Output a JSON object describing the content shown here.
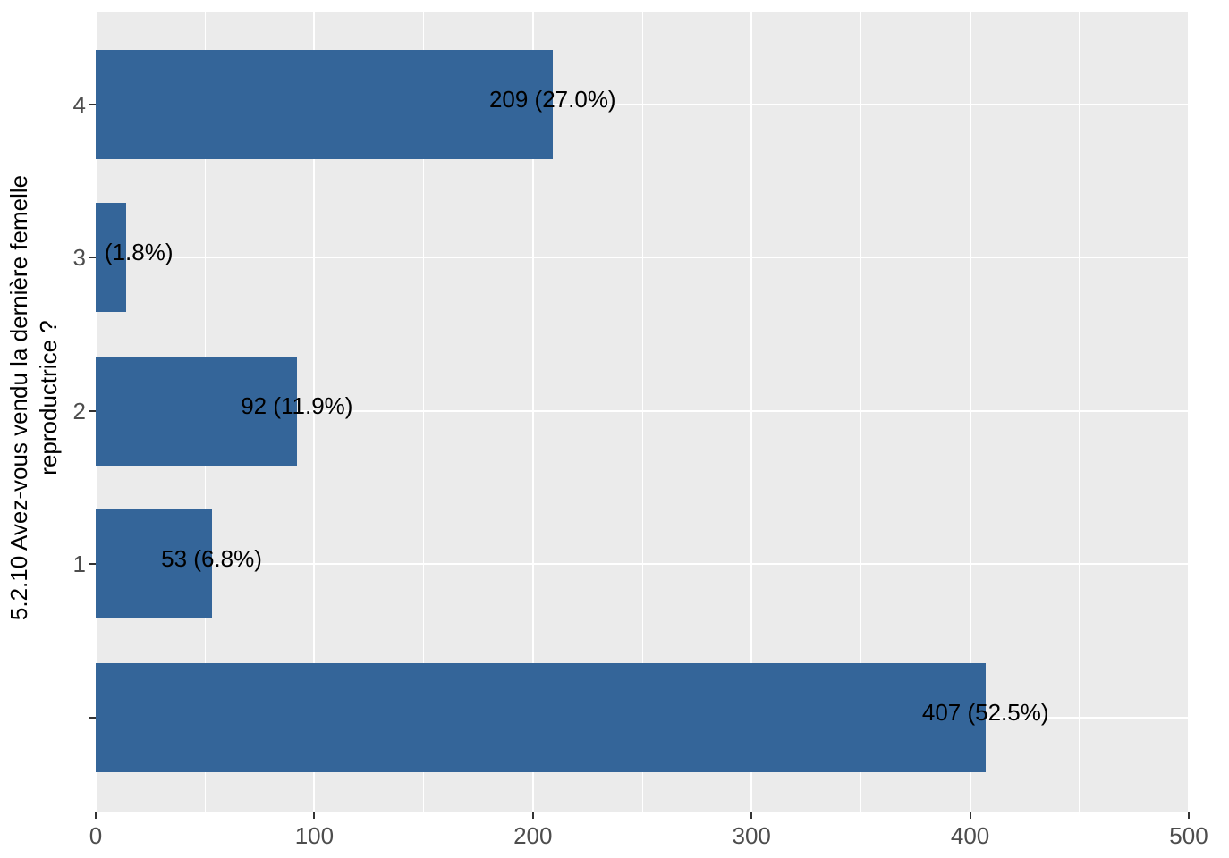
{
  "chart_data": {
    "type": "bar",
    "orientation": "horizontal",
    "title": "",
    "xlabel": "",
    "ylabel": "5.2.10 Avez-vous vendu la dernière femelle reproductrice ?",
    "ylabel_lines": [
      "5.2.10 Avez-vous vendu la dernière femelle",
      "reproductrice ?"
    ],
    "categories": [
      "4",
      "3",
      "2",
      "1",
      ""
    ],
    "values": [
      209,
      14,
      92,
      53,
      407
    ],
    "bar_labels": [
      "209 (27.0%)",
      "(1.8%)",
      "92 (11.9%)",
      "53 (6.8%)",
      "407 (52.5%)"
    ],
    "bar_label_dx": [
      0,
      14,
      0,
      0,
      0
    ],
    "xlim": [
      0,
      500
    ],
    "x_major_ticks": [
      0,
      100,
      200,
      300,
      400,
      500
    ],
    "x_minor_ticks": [
      50,
      150,
      250,
      350,
      450
    ],
    "grid": true,
    "legend": false,
    "colors": {
      "bar": "#346599",
      "panel_background": "#EBEBEB",
      "grid_line": "#FFFFFF",
      "axis_text": "#4D4D4D",
      "bar_label_text": "#000000",
      "axis_title_text": "#000000",
      "tick_mark": "#333333"
    }
  }
}
